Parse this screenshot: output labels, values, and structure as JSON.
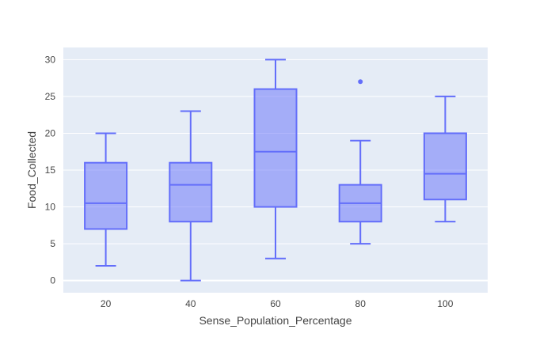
{
  "chart_data": {
    "type": "box",
    "title": "",
    "xlabel": "Sense_Population_Percentage",
    "ylabel": "Food_Collected",
    "categories": [
      "20",
      "40",
      "60",
      "80",
      "100"
    ],
    "boxes": [
      {
        "category": "20",
        "min": 2,
        "q1": 7,
        "median": 10.5,
        "q3": 16,
        "max": 20,
        "outliers": []
      },
      {
        "category": "40",
        "min": 0,
        "q1": 8,
        "median": 13,
        "q3": 16,
        "max": 23,
        "outliers": []
      },
      {
        "category": "60",
        "min": 3,
        "q1": 10,
        "median": 17.5,
        "q3": 26,
        "max": 30,
        "outliers": []
      },
      {
        "category": "80",
        "min": 5,
        "q1": 8,
        "median": 10.5,
        "q3": 13,
        "max": 19,
        "outliers": [
          27
        ]
      },
      {
        "category": "100",
        "min": 8,
        "q1": 11,
        "median": 14.5,
        "q3": 20,
        "max": 25,
        "outliers": []
      }
    ],
    "yticks": [
      0,
      5,
      10,
      15,
      20,
      25,
      30
    ],
    "ylim": [
      -1.65,
      31.65
    ],
    "grid": true,
    "legend": "none",
    "colors": {
      "plot_bg": "#E5ECF6",
      "grid": "#FFFFFF",
      "box_fill": "rgba(99,110,250,0.5)",
      "box_line": "#636EFA"
    }
  }
}
